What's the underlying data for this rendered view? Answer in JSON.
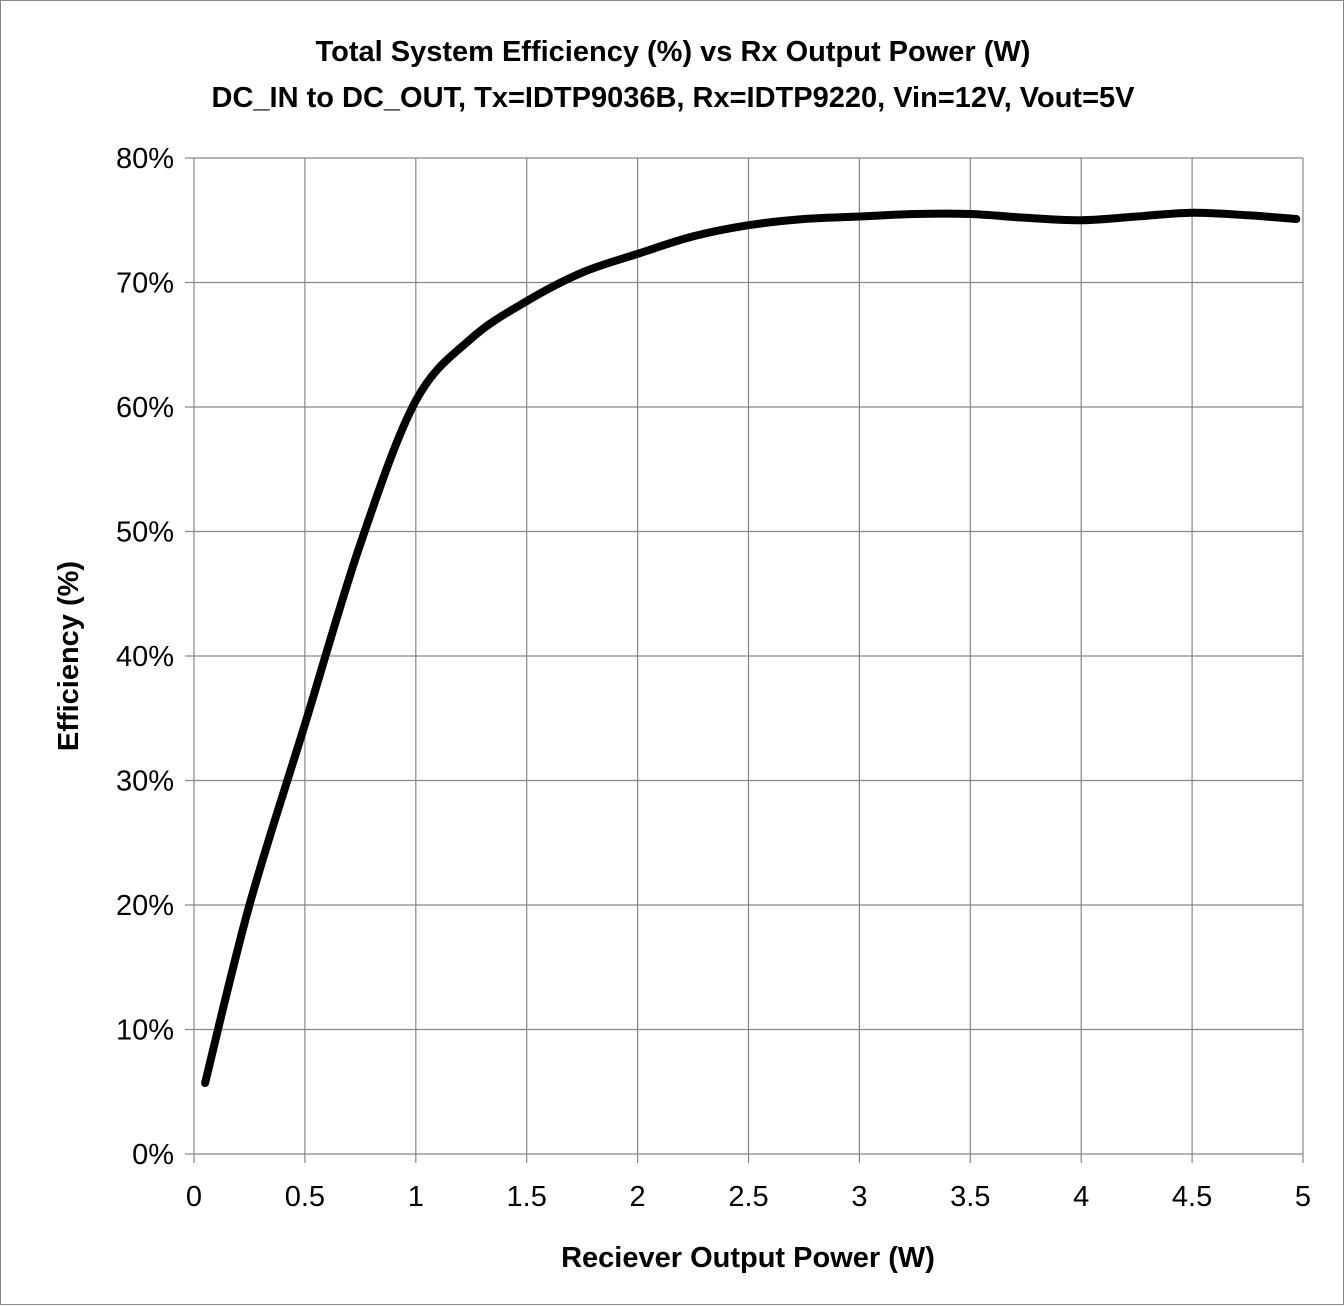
{
  "chart_data": {
    "type": "line",
    "title": "Total System Efficiency (%) vs Rx Output Power (W)",
    "subtitle": "DC_IN to DC_OUT, Tx=IDTP9036B, Rx=IDTP9220, Vin=12V, Vout=5V",
    "xlabel": "Reciever Output Power (W)",
    "ylabel": "Efficiency (%)",
    "xlim": [
      0,
      5
    ],
    "ylim": [
      0,
      80
    ],
    "x_ticks": [
      "0",
      "0.5",
      "1",
      "1.5",
      "2",
      "2.5",
      "3",
      "3.5",
      "4",
      "4.5",
      "5"
    ],
    "y_ticks": [
      "0%",
      "10%",
      "20%",
      "30%",
      "40%",
      "50%",
      "60%",
      "70%",
      "80%"
    ],
    "grid": true,
    "legend": "none",
    "series": [
      {
        "color": "#000000",
        "x": [
          0.05,
          0.25,
          0.5,
          0.75,
          1.0,
          1.25,
          1.5,
          1.75,
          2.0,
          2.25,
          2.5,
          2.75,
          3.0,
          3.25,
          3.5,
          3.75,
          4.0,
          4.25,
          4.5,
          4.75,
          4.97
        ],
        "y": [
          5.7,
          20.0,
          34.5,
          49.0,
          60.5,
          65.5,
          68.5,
          70.8,
          72.3,
          73.7,
          74.6,
          75.1,
          75.3,
          75.5,
          75.5,
          75.2,
          75.0,
          75.3,
          75.6,
          75.4,
          75.1
        ]
      }
    ]
  }
}
